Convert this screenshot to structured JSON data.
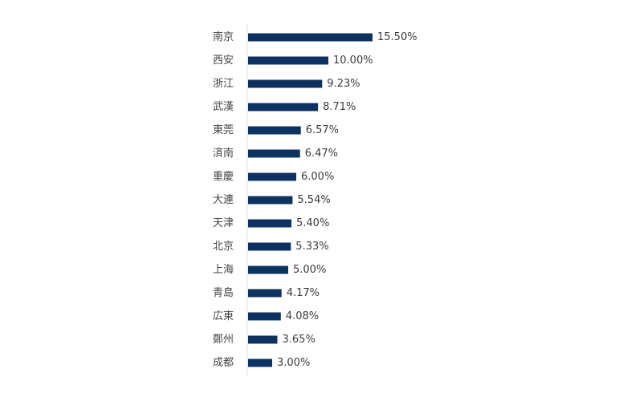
{
  "chart_data": {
    "type": "bar",
    "orientation": "horizontal",
    "categories": [
      "南京",
      "西安",
      "浙江",
      "武漢",
      "東莞",
      "済南",
      "重慶",
      "大連",
      "天津",
      "北京",
      "上海",
      "青島",
      "広東",
      "鄭州",
      "成都"
    ],
    "values": [
      15.5,
      10.0,
      9.23,
      8.71,
      6.57,
      6.47,
      6.0,
      5.54,
      5.4,
      5.33,
      5.0,
      4.17,
      4.08,
      3.65,
      3.0
    ],
    "value_labels": [
      "15.50%",
      "10.00%",
      "9.23%",
      "8.71%",
      "6.57%",
      "6.47%",
      "6.00%",
      "5.54%",
      "5.40%",
      "5.33%",
      "5.00%",
      "4.17%",
      "4.08%",
      "3.65%",
      "3.00%"
    ],
    "title": "",
    "xlabel": "",
    "ylabel": "",
    "xlim": [
      0,
      15.5
    ],
    "grid": false,
    "legend": "none",
    "bar_color": "#0d3260",
    "axis_line_color": "#e3e3e3"
  }
}
